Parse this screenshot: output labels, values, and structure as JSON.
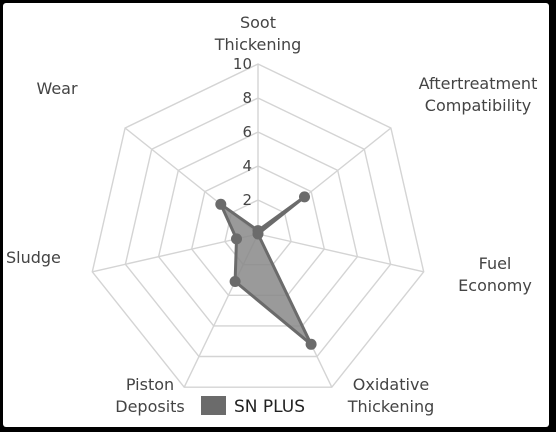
{
  "chart_data": {
    "type": "radar",
    "axes": [
      [
        "Soot",
        "Thickening"
      ],
      [
        "Aftertreatment",
        "Compatibility"
      ],
      [
        "Fuel",
        "Economy"
      ],
      [
        "Oxidative",
        "Thickening"
      ],
      [
        "Piston",
        "Deposits"
      ],
      [
        "Sludge"
      ],
      [
        "Wear"
      ]
    ],
    "ticks": [
      2,
      4,
      6,
      8,
      10
    ],
    "range": [
      0,
      10
    ],
    "series": [
      {
        "name": "SN PLUS",
        "values": [
          0.2,
          3.5,
          0,
          7.2,
          3.1,
          1.3,
          2.8
        ]
      }
    ],
    "colors": {
      "series_fill": "#888888",
      "series_stroke": "#6b6b6b",
      "grid": "#d4d4d4"
    },
    "legend_position": "bottom"
  }
}
